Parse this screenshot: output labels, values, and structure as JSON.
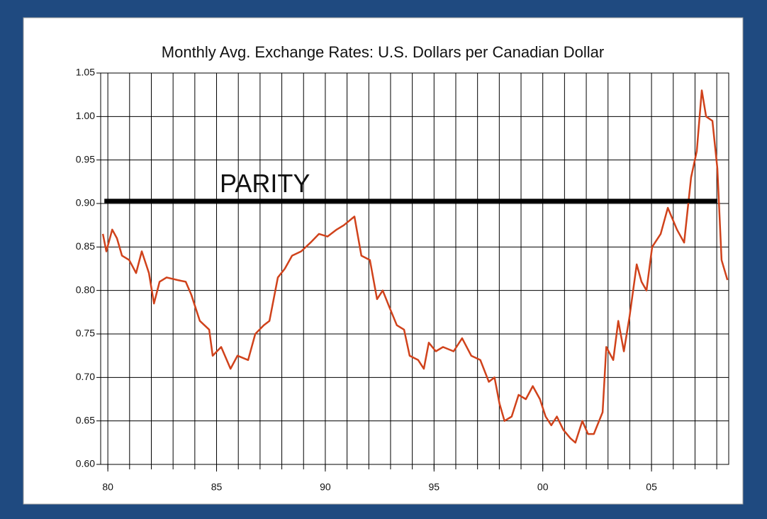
{
  "chart_data": {
    "type": "line",
    "title": "Monthly Avg. Exchange Rates: U.S. Dollars per Canadian Dollar",
    "xlim": [
      1979.67,
      2008.55
    ],
    "xticks": [
      {
        "value": 1980,
        "label": "80"
      },
      {
        "value": 1985,
        "label": "85"
      },
      {
        "value": 1990,
        "label": "90"
      },
      {
        "value": 1995,
        "label": "95"
      },
      {
        "value": 2000,
        "label": "00"
      },
      {
        "value": 2005,
        "label": "05"
      }
    ],
    "xgrid": [
      1980,
      1981,
      1982,
      1983,
      1984,
      1985,
      1986,
      1987,
      1988,
      1989,
      1990,
      1991,
      1992,
      1993,
      1994,
      1995,
      1996,
      1997,
      1998,
      1999,
      2000,
      2001,
      2002,
      2003,
      2004,
      2005,
      2006,
      2007,
      2008
    ],
    "ylim": [
      0.6,
      1.05
    ],
    "yticks": [
      {
        "value": 0.6,
        "label": "0.60"
      },
      0.65,
      {
        "value": 0.7,
        "label": "0.70"
      },
      0.75,
      {
        "value": 0.8,
        "label": "0.80"
      },
      0.85,
      {
        "value": 0.9,
        "label": "0.90"
      },
      0.95,
      {
        "value": 1.0,
        "label": "1.00"
      },
      1.05
    ],
    "grid": true,
    "series": [
      {
        "color": "#d0421b",
        "x": [
          1979.77,
          1979.93,
          1980.2,
          1980.42,
          1980.65,
          1980.98,
          1981.3,
          1981.56,
          1981.89,
          1982.12,
          1982.38,
          1982.7,
          1983.19,
          1983.58,
          1983.84,
          1984.23,
          1984.66,
          1984.82,
          1985.21,
          1985.64,
          1985.96,
          1986.45,
          1986.78,
          1987.17,
          1987.43,
          1987.82,
          1988.14,
          1988.47,
          1988.89,
          1989.32,
          1989.71,
          1990.1,
          1990.52,
          1990.85,
          1991.34,
          1991.66,
          1992.05,
          1992.38,
          1992.64,
          1992.96,
          1993.29,
          1993.62,
          1993.88,
          1994.27,
          1994.53,
          1994.76,
          1995.08,
          1995.41,
          1995.9,
          1996.29,
          1996.71,
          1997.13,
          1997.52,
          1997.78,
          1998.01,
          1998.24,
          1998.57,
          1998.89,
          1999.22,
          1999.54,
          1999.87,
          2000.13,
          2000.39,
          2000.65,
          2000.94,
          2001.27,
          2001.5,
          2001.82,
          2002.08,
          2002.35,
          2002.43,
          2002.75,
          2002.92,
          2003.24,
          2003.47,
          2003.73,
          2003.99,
          2004.32,
          2004.54,
          2004.77,
          2005.03,
          2005.42,
          2005.75,
          2006.17,
          2006.5,
          2006.82,
          2007.08,
          2007.31,
          2007.51,
          2007.8,
          2008.03,
          2008.22,
          2008.49
        ],
        "values": [
          0.865,
          0.845,
          0.87,
          0.86,
          0.84,
          0.835,
          0.82,
          0.845,
          0.82,
          0.785,
          0.81,
          0.815,
          0.812,
          0.81,
          0.795,
          0.765,
          0.755,
          0.725,
          0.735,
          0.71,
          0.725,
          0.72,
          0.75,
          0.76,
          0.765,
          0.815,
          0.825,
          0.84,
          0.845,
          0.855,
          0.865,
          0.862,
          0.87,
          0.875,
          0.885,
          0.84,
          0.835,
          0.79,
          0.8,
          0.78,
          0.76,
          0.755,
          0.725,
          0.72,
          0.71,
          0.74,
          0.73,
          0.735,
          0.73,
          0.745,
          0.725,
          0.72,
          0.695,
          0.7,
          0.67,
          0.65,
          0.655,
          0.68,
          0.675,
          0.69,
          0.675,
          0.655,
          0.645,
          0.655,
          0.64,
          0.63,
          0.625,
          0.65,
          0.635,
          0.635,
          0.64,
          0.66,
          0.735,
          0.72,
          0.765,
          0.73,
          0.77,
          0.83,
          0.81,
          0.8,
          0.85,
          0.865,
          0.895,
          0.87,
          0.855,
          0.93,
          0.96,
          1.03,
          1.0,
          0.995,
          0.94,
          0.835,
          0.812
        ]
      }
    ],
    "annotations": [
      {
        "text": "PARITY",
        "value": 0.903,
        "x": [
          1979.84,
          2008.03
        ]
      }
    ]
  }
}
